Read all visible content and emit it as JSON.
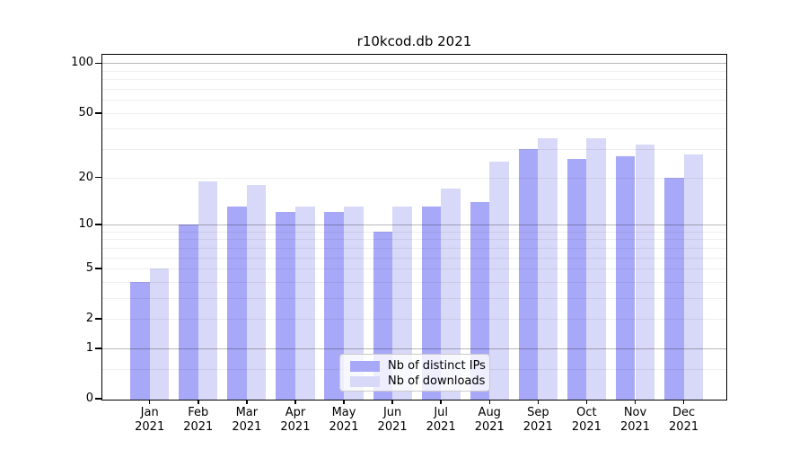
{
  "chart_data": {
    "type": "bar",
    "title": "r10kcod.db 2021",
    "months": [
      "Jan",
      "Feb",
      "Mar",
      "Apr",
      "May",
      "Jun",
      "Jul",
      "Aug",
      "Sep",
      "Oct",
      "Nov",
      "Dec"
    ],
    "year": "2021",
    "series": [
      {
        "name": "Nb of distinct IPs",
        "color": "#a8a8f8",
        "values": [
          4,
          10,
          13,
          12,
          12,
          9,
          13,
          14,
          30,
          26,
          27,
          20
        ]
      },
      {
        "name": "Nb of downloads",
        "color": "#d8d8f8",
        "values": [
          5,
          19,
          18,
          13,
          13,
          13,
          17,
          25,
          35,
          35,
          32,
          28
        ]
      }
    ],
    "y_axis": {
      "scale": "log10(1+x)",
      "tick_values": [
        0,
        1,
        2,
        5,
        10,
        20,
        50,
        100
      ],
      "major_gridlines": [
        1,
        10,
        100
      ],
      "minor_gridlines": [
        0.5,
        2,
        3,
        4,
        5,
        6,
        7,
        8,
        9,
        20,
        30,
        40,
        50,
        60,
        70,
        80,
        90
      ],
      "ylim": [
        0,
        116
      ]
    },
    "legend": {
      "position": "inside-bottom-center"
    }
  }
}
